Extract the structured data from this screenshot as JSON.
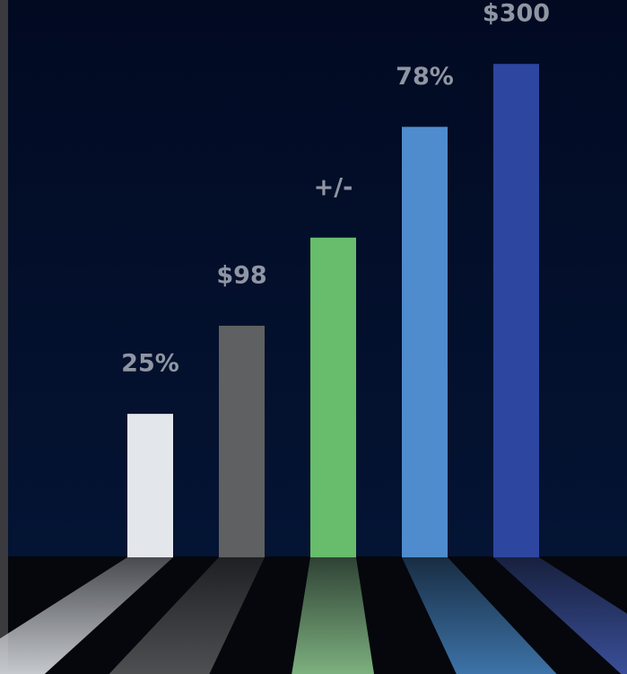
{
  "theme": {
    "background_top": "#020a22",
    "background_bottom": "#041434",
    "floor": "#05070c",
    "left_edge": "#3a3a3f"
  },
  "chart_data": {
    "type": "bar",
    "title": "",
    "xlabel": "",
    "ylabel": "",
    "ylim": [
      0,
      100
    ],
    "grid": false,
    "legend": "none",
    "bars": [
      {
        "label": "25%",
        "value": 28.5,
        "color": "#e3e7ec",
        "floor_color": "#c5c8cc"
      },
      {
        "label": "$98",
        "value": 46.0,
        "color": "#5f6061",
        "floor_color": "#4e4f51"
      },
      {
        "label": "+/-",
        "value": 63.5,
        "color": "#67bd6b",
        "floor_color": "#7db07f"
      },
      {
        "label": "78%",
        "value": 85.5,
        "color": "#4f8ccd",
        "floor_color": "#3d73a8"
      },
      {
        "label": "$300",
        "value": 98.0,
        "color": "#2d46a0",
        "floor_color": "#3a4f99"
      }
    ]
  }
}
